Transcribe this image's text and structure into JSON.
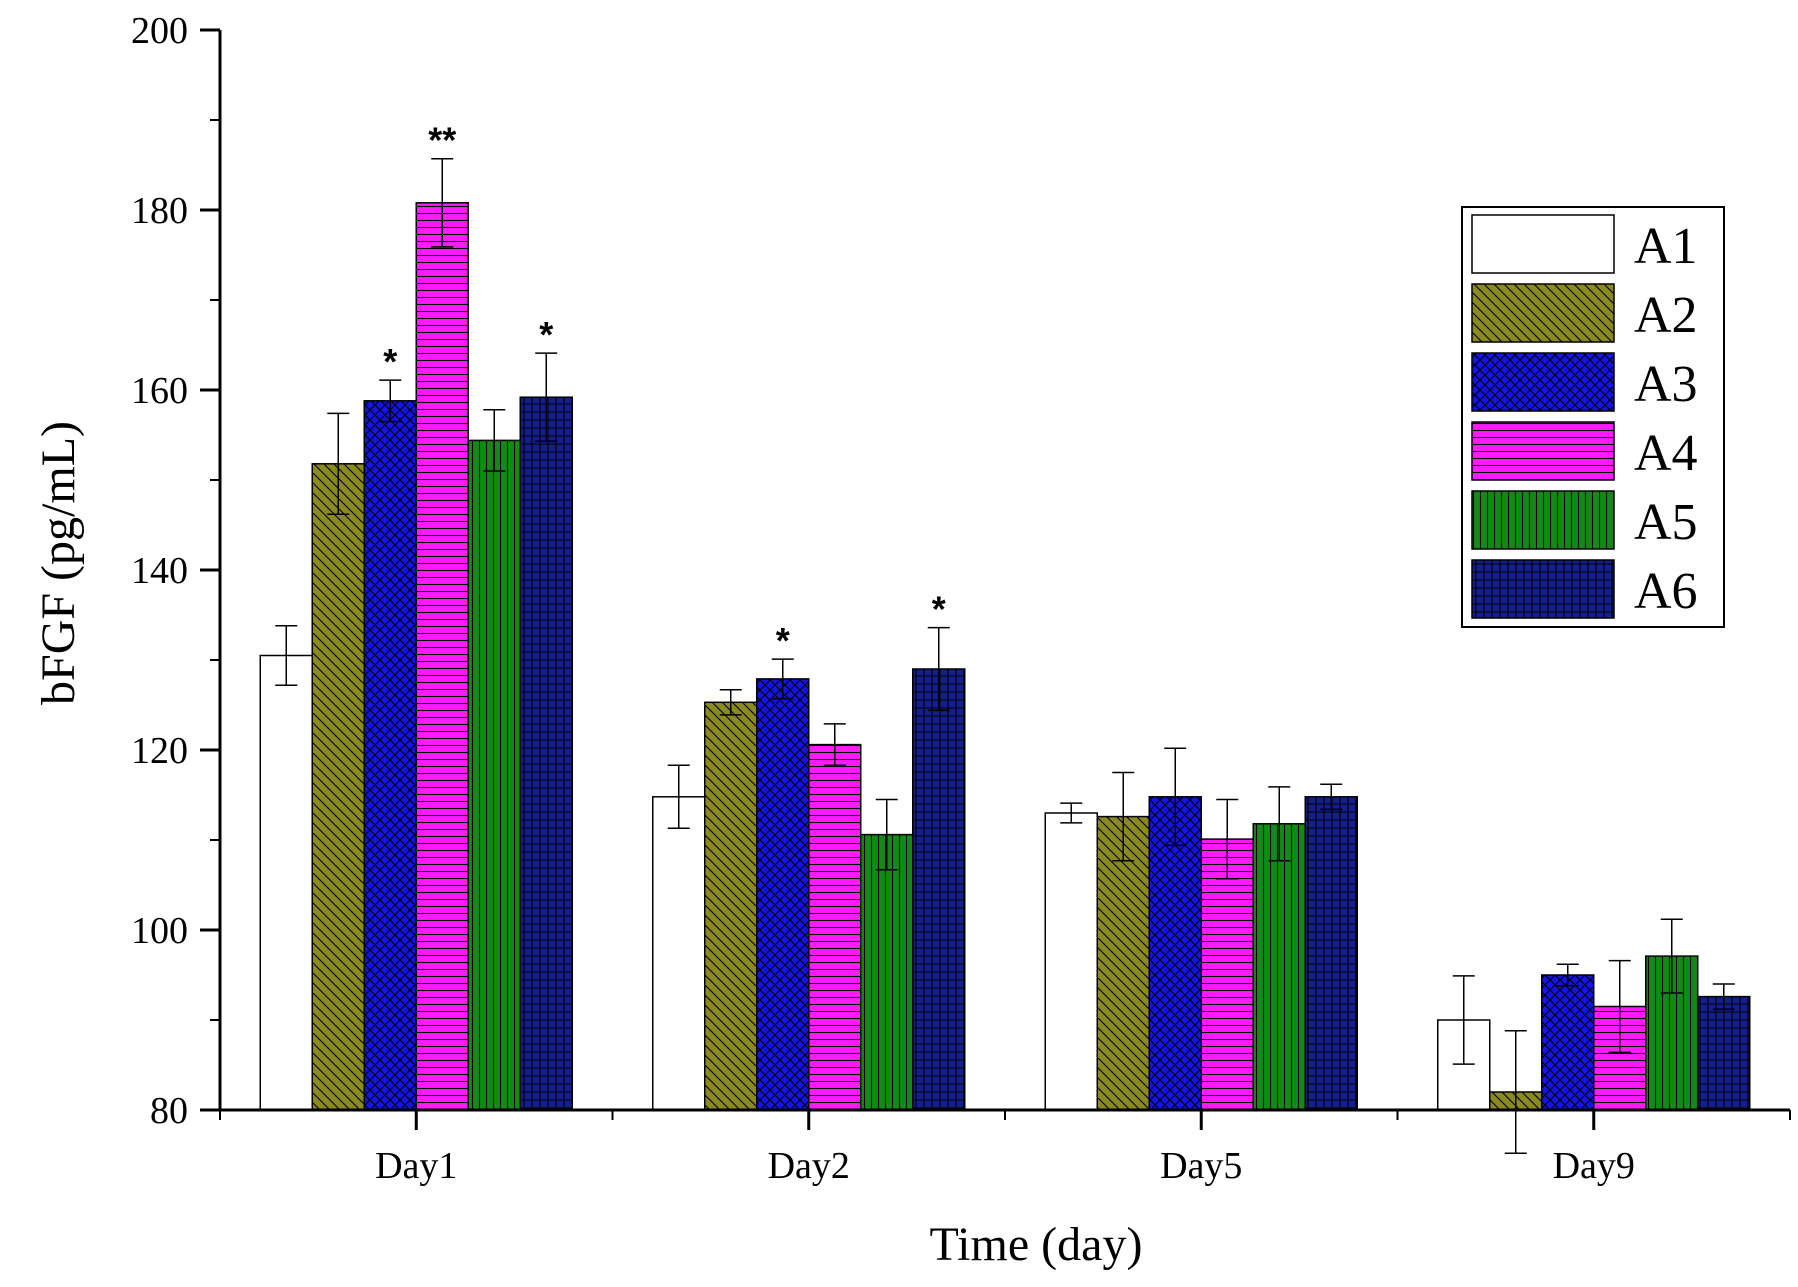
{
  "chart_data": {
    "type": "bar",
    "title": "",
    "xlabel": "Time (day)",
    "ylabel": "bFGF (pg/mL)",
    "ylim": [
      80,
      200
    ],
    "yticks": [
      80,
      100,
      120,
      140,
      160,
      180,
      200
    ],
    "categories": [
      "Day1",
      "Day2",
      "Day5",
      "Day9"
    ],
    "legend_position": "top-right",
    "series": [
      {
        "name": "A1",
        "color": "#ffffff",
        "pattern": "none",
        "values": [
          130.5,
          114.8,
          113.0,
          90.0
        ],
        "errors": [
          3.3,
          3.5,
          1.1,
          4.9
        ],
        "significance": [
          "",
          "",
          "",
          ""
        ]
      },
      {
        "name": "A2",
        "color": "#8b8a1e",
        "pattern": "diag",
        "values": [
          151.8,
          125.3,
          112.6,
          82.0
        ],
        "errors": [
          5.6,
          1.4,
          4.9,
          6.8
        ],
        "significance": [
          "",
          "",
          "",
          ""
        ]
      },
      {
        "name": "A3",
        "color": "#1414e6",
        "pattern": "crosshatch",
        "values": [
          158.8,
          127.9,
          114.8,
          95.0
        ],
        "errors": [
          2.3,
          2.2,
          5.4,
          1.2
        ],
        "significance": [
          "*",
          "*",
          "",
          ""
        ]
      },
      {
        "name": "A4",
        "color": "#ff1aff",
        "pattern": "horizontal",
        "values": [
          180.8,
          120.6,
          110.1,
          91.5
        ],
        "errors": [
          4.9,
          2.3,
          4.4,
          5.1
        ],
        "significance": [
          "**",
          "",
          "",
          ""
        ]
      },
      {
        "name": "A5",
        "color": "#138a13",
        "pattern": "vertical",
        "values": [
          154.4,
          110.6,
          111.8,
          97.1
        ],
        "errors": [
          3.4,
          3.9,
          4.1,
          4.1
        ],
        "significance": [
          "",
          "",
          "",
          ""
        ]
      },
      {
        "name": "A6",
        "color": "#141e8c",
        "pattern": "grid",
        "values": [
          159.2,
          129.0,
          114.8,
          92.6
        ],
        "errors": [
          4.9,
          4.6,
          1.4,
          1.4
        ],
        "significance": [
          "*",
          "*",
          "",
          ""
        ]
      }
    ]
  }
}
